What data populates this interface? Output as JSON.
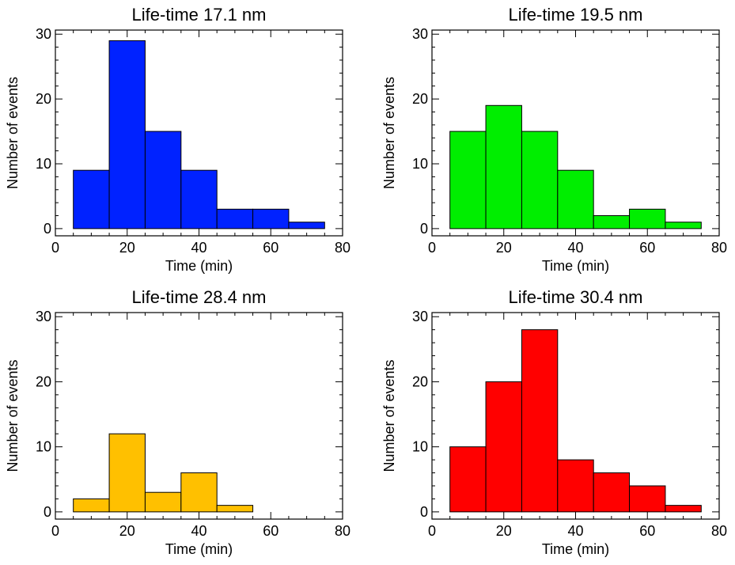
{
  "chart_data": [
    {
      "type": "bar",
      "title": "Life-time 17.1 nm",
      "xlabel": "Time (min)",
      "ylabel": "Number of events",
      "xlim": [
        0,
        80
      ],
      "ylim": [
        0,
        30
      ],
      "xticks": [
        0,
        20,
        40,
        60,
        80
      ],
      "yticks": [
        0,
        10,
        20,
        30
      ],
      "bin_edges": [
        5,
        15,
        25,
        35,
        45,
        55,
        65,
        75
      ],
      "values": [
        9,
        29,
        15,
        9,
        3,
        3,
        1
      ],
      "color": "#0022ff"
    },
    {
      "type": "bar",
      "title": "Life-time 19.5 nm",
      "xlabel": "Time (min)",
      "ylabel": "Number of events",
      "xlim": [
        0,
        80
      ],
      "ylim": [
        0,
        30
      ],
      "xticks": [
        0,
        20,
        40,
        60,
        80
      ],
      "yticks": [
        0,
        10,
        20,
        30
      ],
      "bin_edges": [
        5,
        15,
        25,
        35,
        45,
        55,
        65,
        75
      ],
      "values": [
        15,
        19,
        15,
        9,
        2,
        3,
        1
      ],
      "color": "#00ee00"
    },
    {
      "type": "bar",
      "title": "Life-time 28.4 nm",
      "xlabel": "Time (min)",
      "ylabel": "Number of events",
      "xlim": [
        0,
        80
      ],
      "ylim": [
        0,
        30
      ],
      "xticks": [
        0,
        20,
        40,
        60,
        80
      ],
      "yticks": [
        0,
        10,
        20,
        30
      ],
      "bin_edges": [
        5,
        15,
        25,
        35,
        45,
        55
      ],
      "values": [
        2,
        12,
        3,
        6,
        1
      ],
      "color": "#ffc000"
    },
    {
      "type": "bar",
      "title": "Life-time 30.4 nm",
      "xlabel": "Time (min)",
      "ylabel": "Number of events",
      "xlim": [
        0,
        80
      ],
      "ylim": [
        0,
        30
      ],
      "xticks": [
        0,
        20,
        40,
        60,
        80
      ],
      "yticks": [
        0,
        10,
        20,
        30
      ],
      "bin_edges": [
        5,
        15,
        25,
        35,
        45,
        55,
        65,
        75
      ],
      "values": [
        10,
        20,
        28,
        8,
        6,
        4,
        1
      ],
      "color": "#ff0000"
    }
  ]
}
